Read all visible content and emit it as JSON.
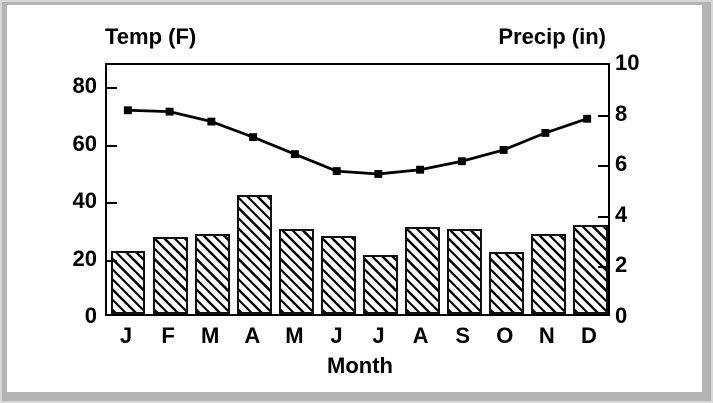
{
  "window": {
    "background": "#ffffff",
    "frame_color": "#b2b4b6"
  },
  "chart_data": {
    "type": "combo",
    "categories": [
      "J",
      "F",
      "M",
      "A",
      "M",
      "J",
      "J",
      "A",
      "S",
      "O",
      "N",
      "D"
    ],
    "xlabel": "Month",
    "left_axis": {
      "title": "Temp (F)",
      "ticks": [
        0,
        20,
        40,
        60,
        80
      ],
      "range": [
        0,
        88
      ]
    },
    "right_axis": {
      "title": "Precip (in)",
      "ticks": [
        0,
        2,
        4,
        6,
        8,
        10
      ],
      "range": [
        0,
        10
      ]
    },
    "series": [
      {
        "name": "Temp (F)",
        "type": "line",
        "axis": "left",
        "values": [
          72,
          71.5,
          68,
          62.5,
          56.5,
          50.5,
          49.5,
          51,
          54,
          58,
          64,
          69
        ]
      },
      {
        "name": "Precip (in)",
        "type": "bar",
        "axis": "right",
        "values": [
          2.5,
          3.05,
          3.15,
          4.7,
          3.35,
          3.1,
          2.35,
          3.45,
          3.35,
          2.45,
          3.15,
          3.5
        ]
      }
    ],
    "grid": false,
    "legend": "none",
    "styles": {
      "line_color": "#000000",
      "marker": "square",
      "bar_fill": "#ffffff",
      "bar_hatch_color": "#000000",
      "text_color": "#000000"
    }
  }
}
